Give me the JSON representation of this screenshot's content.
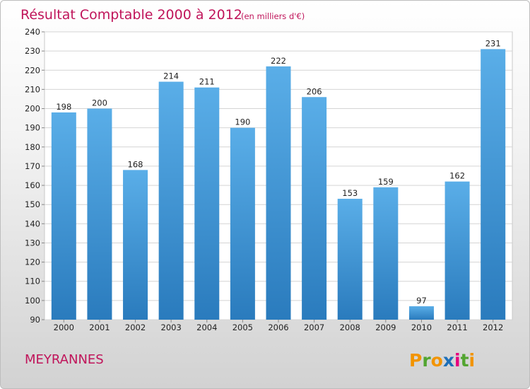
{
  "chart_data": {
    "type": "bar",
    "title": "Résultat Comptable 2000 à 2012",
    "subtitle": "(en milliers d'€)",
    "xlabel": "",
    "ylabel": "",
    "categories": [
      "2000",
      "2001",
      "2002",
      "2003",
      "2004",
      "2005",
      "2006",
      "2007",
      "2008",
      "2009",
      "2010",
      "2011",
      "2012"
    ],
    "values": [
      198,
      200,
      168,
      214,
      211,
      190,
      222,
      206,
      153,
      159,
      97,
      162,
      231
    ],
    "ylim": [
      90,
      240
    ],
    "yticks": [
      90,
      100,
      110,
      120,
      130,
      140,
      150,
      160,
      170,
      180,
      190,
      200,
      210,
      220,
      230,
      240
    ],
    "grid": true,
    "bar_color_top": "#5aaee8",
    "bar_color_bottom": "#2a7bbd"
  },
  "footer": {
    "town": "MEYRANNES",
    "logo_letters": [
      "P",
      "r",
      "o",
      "x",
      "i",
      "t",
      "i"
    ],
    "logo_colors": [
      "#f29400",
      "#52a530",
      "#f29400",
      "#1d6fb8",
      "#e6007e",
      "#52a530",
      "#f29400"
    ]
  }
}
